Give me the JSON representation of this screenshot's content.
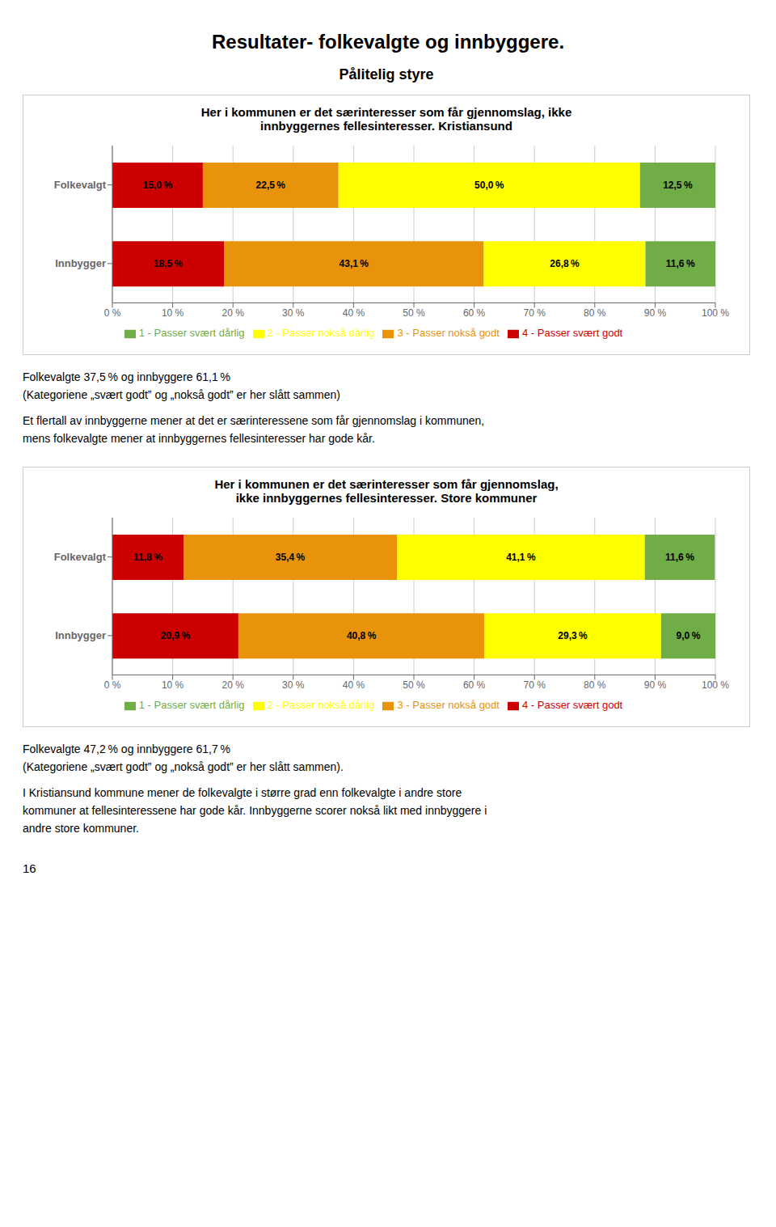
{
  "title": "Resultater- folkevalgte og innbyggere.",
  "annotations": [
    "16"
  ],
  "chart_data": [
    {
      "type": "bar",
      "orientation": "horizontal",
      "stacked": true,
      "subtitle": "Pålitelig styre",
      "title": "Her i kommunen er det særinteresser som får gjennomslag, ikke\ninnbyggernes fellesinteresser. Kristiansund",
      "categories": [
        "Folkevalgt",
        "Innbygger"
      ],
      "series": [
        {
          "name": "4 - Passer svært godt",
          "color": "#cc0000",
          "values": [
            15.0,
            18.5
          ],
          "value_labels": [
            "15,0 %",
            "18,5 %"
          ]
        },
        {
          "name": "3 - Passer nokså godt",
          "color": "#e8930a",
          "values": [
            22.5,
            43.1
          ],
          "value_labels": [
            "22,5 %",
            "43,1 %"
          ]
        },
        {
          "name": "2 - Passer nokså dårlig",
          "color": "#ffff00",
          "values": [
            50.0,
            26.8
          ],
          "value_labels": [
            "50,0 %",
            "26,8 %"
          ]
        },
        {
          "name": "1 - Passer svært dårlig",
          "color": "#70ad47",
          "values": [
            12.5,
            11.6
          ],
          "value_labels": [
            "12,5 %",
            "11,6 %"
          ]
        }
      ],
      "xlim": [
        0,
        100
      ],
      "xticks": [
        {
          "value": 0,
          "label": "0 %"
        },
        {
          "value": 10,
          "label": "10 %"
        },
        {
          "value": 20,
          "label": "20 %"
        },
        {
          "value": 30,
          "label": "30 %"
        },
        {
          "value": 40,
          "label": "40 %"
        },
        {
          "value": 50,
          "label": "50 %"
        },
        {
          "value": 60,
          "label": "60 %"
        },
        {
          "value": 70,
          "label": "70 %"
        },
        {
          "value": 80,
          "label": "80 %"
        },
        {
          "value": 90,
          "label": "90 %"
        },
        {
          "value": 100,
          "label": "100 %"
        }
      ],
      "grid": true,
      "legend": "bottom",
      "data_labels": true,
      "annotations": [
        "Folkevalgte 37,5 % og innbyggere 61,1 %",
        "(Kategoriene „svært godt” og „nokså godt” er her slått sammen)",
        "Et flertall av innbyggerne mener at det er særinteressene som får gjennomslag i kommunen,",
        "mens folkevalgte mener at innbyggernes fellesinteresser har gode kår."
      ]
    },
    {
      "type": "bar",
      "orientation": "horizontal",
      "stacked": true,
      "title": "Her i kommunen er det særinteresser som får gjennomslag,\nikke innbyggernes fellesinteresser. Store kommuner",
      "categories": [
        "Folkevalgt",
        "Innbygger"
      ],
      "series": [
        {
          "name": "4 - Passer svært godt",
          "color": "#cc0000",
          "values": [
            11.8,
            20.9
          ],
          "value_labels": [
            "11,8 %",
            "20,9 %"
          ]
        },
        {
          "name": "3 - Passer nokså godt",
          "color": "#e8930a",
          "values": [
            35.4,
            40.8
          ],
          "value_labels": [
            "35,4 %",
            "40,8 %"
          ]
        },
        {
          "name": "2 - Passer nokså dårlig",
          "color": "#ffff00",
          "values": [
            41.1,
            29.3
          ],
          "value_labels": [
            "41,1 %",
            "29,3 %"
          ]
        },
        {
          "name": "1 - Passer svært dårlig",
          "color": "#70ad47",
          "values": [
            11.6,
            9.0
          ],
          "value_labels": [
            "11,6 %",
            "9,0 %"
          ]
        }
      ],
      "xlim": [
        0,
        100
      ],
      "xticks": [
        {
          "value": 0,
          "label": "0 %"
        },
        {
          "value": 10,
          "label": "10 %"
        },
        {
          "value": 20,
          "label": "20 %"
        },
        {
          "value": 30,
          "label": "30 %"
        },
        {
          "value": 40,
          "label": "40 %"
        },
        {
          "value": 50,
          "label": "50 %"
        },
        {
          "value": 60,
          "label": "60 %"
        },
        {
          "value": 70,
          "label": "70 %"
        },
        {
          "value": 80,
          "label": "80 %"
        },
        {
          "value": 90,
          "label": "90 %"
        },
        {
          "value": 100,
          "label": "100 %"
        }
      ],
      "grid": true,
      "legend": "bottom",
      "data_labels": true,
      "annotations": [
        "Folkevalgte 47,2 % og innbyggere 61,7 %",
        "(Kategoriene „svært godt” og „nokså godt” er her slått sammen).",
        "I Kristiansund kommune mener de folkevalgte i større grad enn folkevalgte i andre store",
        "kommuner at fellesinteressene har gode kår. Innbyggerne scorer nokså likt med innbyggere i",
        "andre store kommuner."
      ]
    }
  ]
}
